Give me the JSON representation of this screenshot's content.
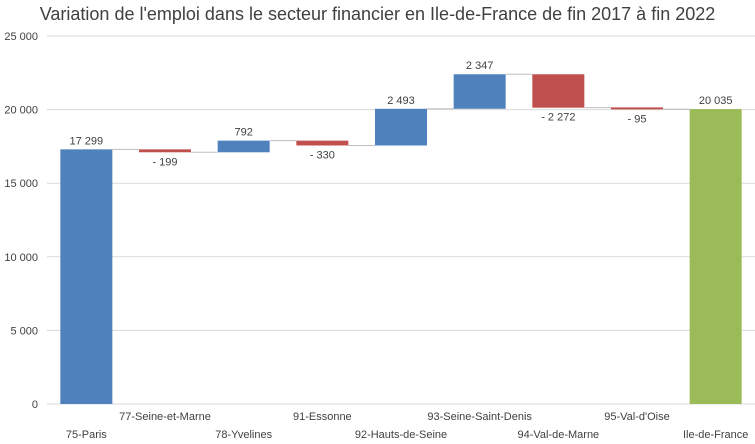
{
  "chart_data": {
    "type": "bar",
    "title": "Variation de l'emploi dans le secteur financier en Ile-de-France de fin 2017 à fin 2022",
    "xlabel": "",
    "ylabel": "",
    "ylim": [
      0,
      25000
    ],
    "yticks": [
      0,
      5000,
      10000,
      15000,
      20000,
      25000
    ],
    "ytick_labels": [
      "0",
      "5 000",
      "10 000",
      "15 000",
      "20 000",
      "25 000"
    ],
    "grid": true,
    "categories": [
      "75-Paris",
      "77-Seine-et-Marne",
      "78-Yvelines",
      "91-Essonne",
      "92-Hauts-de-Seine",
      "93-Seine-Saint-Denis",
      "94-Val-de-Marne",
      "95-Val-d'Oise",
      "Ile-de-France"
    ],
    "values": [
      17299,
      -199,
      792,
      -330,
      2493,
      2347,
      -2272,
      -95,
      20035
    ],
    "value_labels": [
      "17 299",
      "-  199",
      "792",
      "-  330",
      "2 493",
      "2 347",
      "- 2 272",
      "-  95",
      "20 035"
    ],
    "kinds": [
      "total",
      "delta",
      "delta",
      "delta",
      "delta",
      "delta",
      "delta",
      "delta",
      "total"
    ],
    "colors": {
      "start_total": "#4f81bd",
      "increase": "#4f81bd",
      "decrease": "#c0504d",
      "end_total": "#9bbb59",
      "grid": "#d9d9d9",
      "text": "#404040"
    }
  }
}
